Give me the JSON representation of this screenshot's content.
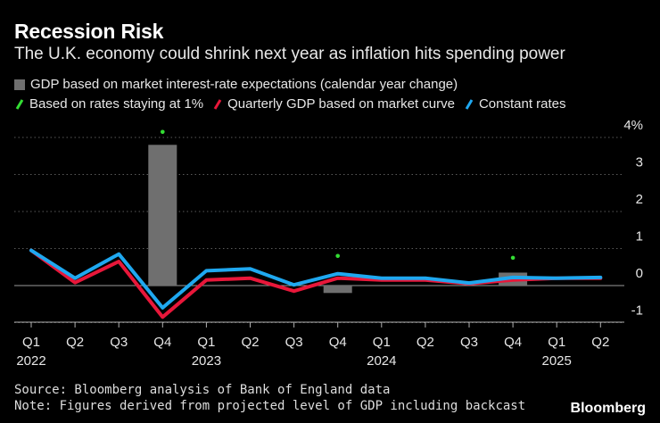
{
  "header": {
    "title": "Recession Risk",
    "subtitle": "The U.K. economy could shrink next year as inflation hits spending power"
  },
  "legend": {
    "bar": "GDP based on market interest-rate expectations (calendar year change)",
    "dots": "Based on rates staying at 1%",
    "red": "Quarterly GDP based on market curve",
    "blue": "Constant rates"
  },
  "footer": {
    "source": "Source: Bloomberg analysis of Bank of England data",
    "note": "Note: Figures derived from projected level of GDP including backcast",
    "brand": "Bloomberg"
  },
  "colors": {
    "background": "#000000",
    "bar": "#6f6f6f",
    "dot": "#33dd33",
    "red": "#e8173a",
    "blue": "#1fa8f0",
    "grid": "#5a5a5a",
    "text": "#e6e6e6"
  },
  "chart_data": {
    "type": "line",
    "categories": [
      "Q1",
      "Q2",
      "Q3",
      "Q4",
      "Q1",
      "Q2",
      "Q3",
      "Q4",
      "Q1",
      "Q2",
      "Q3",
      "Q4",
      "Q1",
      "Q2"
    ],
    "year_labels": [
      {
        "index": 0,
        "label": "2022"
      },
      {
        "index": 4,
        "label": "2023"
      },
      {
        "index": 8,
        "label": "2024"
      },
      {
        "index": 12,
        "label": "2025"
      }
    ],
    "ylim": [
      -1,
      4
    ],
    "yticks": [
      -1,
      0,
      1,
      2,
      3,
      4
    ],
    "ytick_labels": [
      "-1",
      "0",
      "1",
      "2",
      "3",
      "4%"
    ],
    "bars": [
      {
        "index": 3,
        "value": 3.8
      },
      {
        "index": 7,
        "value": -0.2
      },
      {
        "index": 11,
        "value": 0.35
      }
    ],
    "dots": [
      {
        "index": 3,
        "value": 4.15
      },
      {
        "index": 7,
        "value": 0.8
      },
      {
        "index": 11,
        "value": 0.75
      }
    ],
    "series": [
      {
        "name": "Quarterly GDP based on market curve",
        "color": "#e8173a",
        "values": [
          0.95,
          0.08,
          0.65,
          -0.85,
          0.15,
          0.2,
          -0.15,
          0.2,
          0.15,
          0.15,
          0.05,
          0.15,
          0.2,
          0.2
        ]
      },
      {
        "name": "Constant rates",
        "color": "#1fa8f0",
        "values": [
          0.95,
          0.2,
          0.85,
          -0.6,
          0.4,
          0.45,
          0.02,
          0.32,
          0.2,
          0.2,
          0.07,
          0.22,
          0.2,
          0.22
        ]
      }
    ]
  }
}
